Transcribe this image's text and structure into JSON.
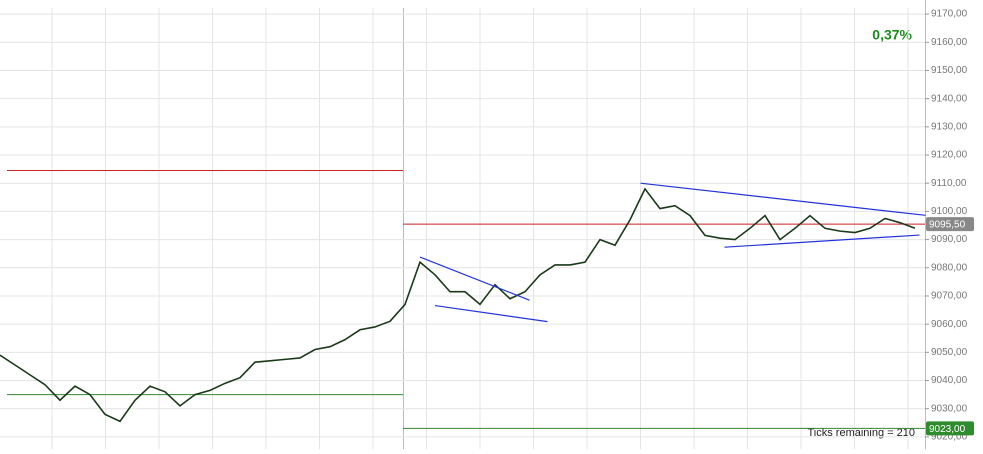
{
  "chart_data": {
    "type": "line",
    "series": [
      {
        "name": "Price",
        "color": "#1a3a1a",
        "values": [
          9049,
          9045.5,
          9042,
          9038.5,
          9033,
          9038,
          9035,
          9028,
          9025.5,
          9033,
          9038,
          9036,
          9031,
          9035,
          9036.5,
          9039,
          9041,
          9046.5,
          9047,
          9047.5,
          9048,
          9051,
          9052,
          9054.5,
          9058,
          9059,
          9061,
          9067,
          9082,
          9077.5,
          9071.5,
          9071.5,
          9067,
          9074,
          9069,
          9071.5,
          9077.5,
          9081,
          9081,
          9082,
          9090,
          9088,
          9097,
          9108,
          9101,
          9102,
          9098.5,
          9091.5,
          9090.5,
          9090,
          9094,
          9098.5,
          9090,
          9094,
          9098.5,
          9094,
          9093,
          9092.5,
          9094,
          9097.5,
          9096,
          9094
        ]
      }
    ],
    "ylim": [
      9015.7,
      9175
    ],
    "yticks": [
      {
        "value": 9020,
        "label": "9020,00"
      },
      {
        "value": 9030,
        "label": "9030,00"
      },
      {
        "value": 9040,
        "label": "9040,00"
      },
      {
        "value": 9050,
        "label": "9050,00"
      },
      {
        "value": 9060,
        "label": "9060,00"
      },
      {
        "value": 9070,
        "label": "9070,00"
      },
      {
        "value": 9080,
        "label": "9080,00"
      },
      {
        "value": 9090,
        "label": "9090,00"
      },
      {
        "value": 9100,
        "label": "9100,00"
      },
      {
        "value": 9110,
        "label": "9110,00"
      },
      {
        "value": 9120,
        "label": "9120,00"
      },
      {
        "value": 9130,
        "label": "9130,00"
      },
      {
        "value": 9140,
        "label": "9140,00"
      },
      {
        "value": 9150,
        "label": "9150,00"
      },
      {
        "value": 9160,
        "label": "9160,00"
      },
      {
        "value": 9170,
        "label": "9170,00"
      }
    ],
    "grid": true,
    "levels": [
      {
        "value": 9114.5,
        "color": "#cc2222"
      },
      {
        "value": 9035,
        "color": "#338833"
      },
      {
        "value": 9095.5,
        "color": "#cc2222"
      },
      {
        "value": 9023,
        "color": "#338833"
      }
    ],
    "trendlines": [
      {
        "x": [
          42.7,
          61.7
        ],
        "values": [
          9110,
          9098.6
        ]
      },
      {
        "x": [
          48.3,
          61.3
        ],
        "values": [
          9087.3,
          9091.6
        ]
      },
      {
        "x": [
          28,
          35.3
        ],
        "values": [
          9083.8,
          9068.5
        ]
      },
      {
        "x": [
          29,
          36.5
        ],
        "values": [
          9066.6,
          9060.9
        ]
      }
    ],
    "price_tags": [
      {
        "value": 9095.5,
        "label": "9095,50",
        "color": "#888888"
      },
      {
        "value": 9023,
        "label": "9023,00",
        "color": "#2e8b2e"
      }
    ],
    "change": "0,37%",
    "status": "Ticks remaining = 210"
  }
}
